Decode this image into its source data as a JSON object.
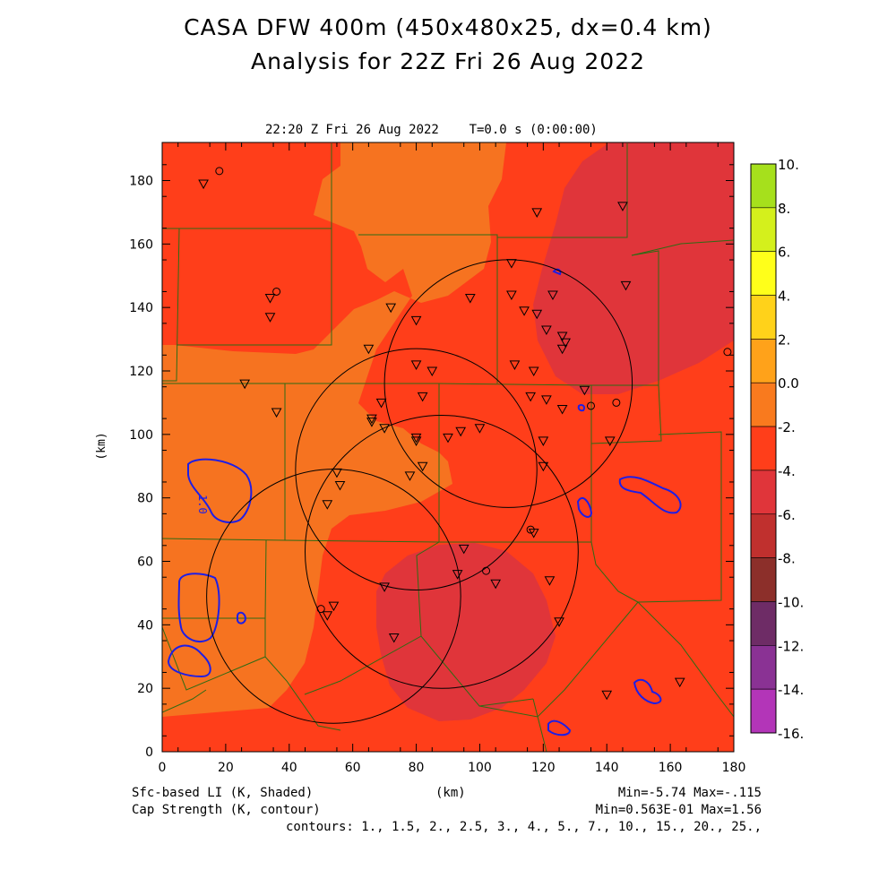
{
  "titles": {
    "line1": "CASA DFW 400m (450x480x25, dx=0.4 km)",
    "line2": "Analysis for 22Z Fri 26 Aug 2022"
  },
  "plot": {
    "subtitle": "22:20 Z Fri 26 Aug 2022    T=0.0 s (0:00:00)",
    "xlabel": "(km)",
    "ylabel": "(km)",
    "xticks": [
      "0",
      "20",
      "40",
      "60",
      "80",
      "100",
      "120",
      "140",
      "160",
      "180"
    ],
    "yticks": [
      "0",
      "20",
      "40",
      "60",
      "80",
      "100",
      "120",
      "140",
      "160",
      "180"
    ],
    "contour_label": "1.0"
  },
  "footer": {
    "shaded_field": "Sfc-based LI (K, Shaded)",
    "contour_field": "Cap Strength (K, contour)",
    "xunit": "(km)",
    "minmax_shaded": "Min=-5.74 Max=-.115",
    "minmax_contour": "Min=0.563E-01 Max=1.56",
    "contours": "contours: 1., 1.5, 2., 2.5, 3., 4., 5., 7., 10., 15., 20., 25.,"
  },
  "colorbar": {
    "labels": [
      "10.",
      "8.",
      "6.",
      "4.",
      "2.",
      "0.0",
      "-2.",
      "-4.",
      "-6.",
      "-8.",
      "-10.",
      "-12.",
      "-14.",
      "-16."
    ],
    "colors": [
      "#a6e01c",
      "#d4f01c",
      "#ffff1a",
      "#ffd21a",
      "#ffa21a",
      "#f97a1e",
      "#ff3e1a",
      "#e0353a",
      "#c0302e",
      "#8c2f2a",
      "#6e2c66",
      "#8a3294",
      "#b335b8",
      "#d840df"
    ]
  },
  "colors": {
    "field_orange": "#f67320",
    "field_red": "#ff3e1a",
    "field_darkred": "#e0353a",
    "counties": "#2e6b14",
    "contour": "#1e1ee6",
    "circles": "#000000"
  },
  "map": {
    "xrange_km": [
      0,
      180
    ],
    "yrange_km": [
      0,
      192
    ],
    "radars": [
      {
        "cx_km": 109,
        "cy_km": 116,
        "r_km": 39
      },
      {
        "cx_km": 80,
        "cy_km": 89,
        "r_km": 38
      },
      {
        "cx_km": 88,
        "cy_km": 63,
        "r_km": 43
      },
      {
        "cx_km": 54,
        "cy_km": 49,
        "r_km": 40
      }
    ],
    "triangles": [
      [
        13,
        179
      ],
      [
        34,
        143
      ],
      [
        34,
        137
      ],
      [
        26,
        116
      ],
      [
        36,
        107
      ],
      [
        72,
        140
      ],
      [
        80,
        136
      ],
      [
        97,
        143
      ],
      [
        110,
        154
      ],
      [
        118,
        170
      ],
      [
        110,
        144
      ],
      [
        114,
        139
      ],
      [
        118,
        138
      ],
      [
        123,
        144
      ],
      [
        121,
        133
      ],
      [
        126,
        131
      ],
      [
        126,
        127
      ],
      [
        127,
        129
      ],
      [
        146,
        147
      ],
      [
        145,
        172
      ],
      [
        111,
        122
      ],
      [
        117,
        120
      ],
      [
        80,
        122
      ],
      [
        85,
        120
      ],
      [
        65,
        127
      ],
      [
        69,
        110
      ],
      [
        82,
        112
      ],
      [
        100,
        102
      ],
      [
        90,
        99
      ],
      [
        94,
        101
      ],
      [
        80,
        99
      ],
      [
        80,
        98
      ],
      [
        82,
        90
      ],
      [
        78,
        87
      ],
      [
        66,
        105
      ],
      [
        66,
        104
      ],
      [
        70,
        102
      ],
      [
        116,
        112
      ],
      [
        121,
        111
      ],
      [
        126,
        108
      ],
      [
        133,
        114
      ],
      [
        141,
        98
      ],
      [
        120,
        98
      ],
      [
        120,
        90
      ],
      [
        55,
        88
      ],
      [
        56,
        84
      ],
      [
        52,
        78
      ],
      [
        95,
        64
      ],
      [
        93,
        56
      ],
      [
        105,
        53
      ],
      [
        70,
        52
      ],
      [
        122,
        54
      ],
      [
        117,
        69
      ],
      [
        54,
        46
      ],
      [
        52,
        43
      ],
      [
        73,
        36
      ],
      [
        125,
        41
      ],
      [
        140,
        18
      ],
      [
        163,
        22
      ]
    ],
    "circle_sites": [
      [
        18,
        183
      ],
      [
        36,
        145
      ],
      [
        178,
        126
      ],
      [
        143,
        110
      ],
      [
        135,
        109
      ],
      [
        102,
        57
      ],
      [
        116,
        70
      ],
      [
        50,
        45
      ]
    ]
  }
}
